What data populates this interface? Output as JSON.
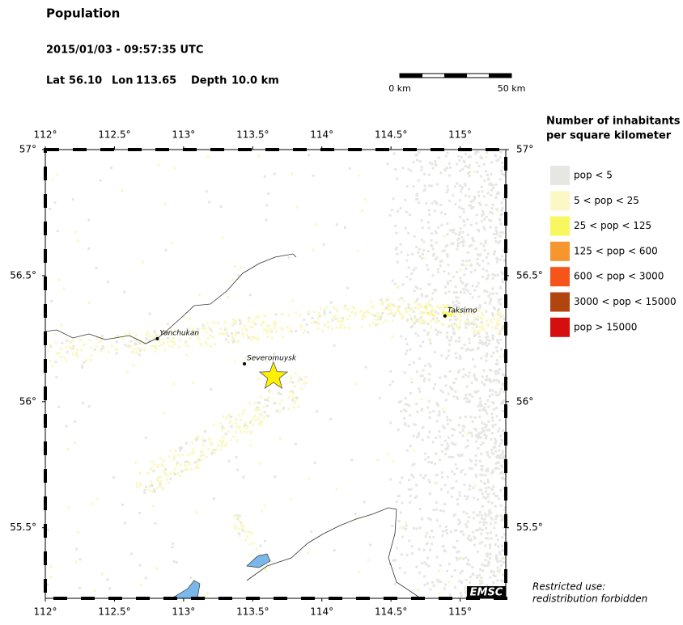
{
  "header": {
    "title": "Population",
    "datetime": "2015/01/03 - 09:57:35 UTC",
    "lat_label": "Lat",
    "lat": {
      "value": 56.1,
      "label": "56.10"
    },
    "lon_label": "Lon",
    "lon": {
      "value": 113.65,
      "label": "113.65"
    },
    "depth_label": "Depth",
    "depth": {
      "value": 10,
      "label": "10.0 km"
    }
  },
  "scale_bar": {
    "labels": [
      "0 km",
      "50 km"
    ]
  },
  "map": {
    "lon_lim": [
      112,
      115.33
    ],
    "lat_lim": [
      55.22,
      57
    ],
    "lon_ticks": [
      {
        "value": 112,
        "label": "112°"
      },
      {
        "value": 112.5,
        "label": "112.5°"
      },
      {
        "value": 113,
        "label": "113°"
      },
      {
        "value": 113.5,
        "label": "113.5°"
      },
      {
        "value": 114,
        "label": "114°"
      },
      {
        "value": 114.5,
        "label": "114.5°"
      },
      {
        "value": 115,
        "label": "115°"
      }
    ],
    "lat_ticks": [
      {
        "value": 57,
        "label": "57°"
      },
      {
        "value": 56.5,
        "label": "56.5°"
      },
      {
        "value": 56,
        "label": "56°"
      },
      {
        "value": 55.5,
        "label": "55.5°"
      }
    ],
    "cities": [
      {
        "name": "Yanchukan",
        "lon": 112.81,
        "lat": 56.25
      },
      {
        "name": "Severomuysk",
        "lon": 113.44,
        "lat": 56.15
      },
      {
        "name": "Taksimo",
        "lon": 114.89,
        "lat": 56.34
      }
    ],
    "epicenter_color": "#ffef00",
    "credit": "EMSC"
  },
  "legend": {
    "title": [
      "Number of inhabitants",
      "per square kilometer"
    ],
    "items": [
      {
        "label": "pop < 5",
        "color": "#e6e6e3"
      },
      {
        "label": "5 < pop < 25",
        "color": "#fbf8c5"
      },
      {
        "label": "25 < pop < 125",
        "color": "#f8f75f"
      },
      {
        "label": "125 < pop < 600",
        "color": "#f6962f"
      },
      {
        "label": "600 < pop < 3000",
        "color": "#f5541a"
      },
      {
        "label": "3000 < pop < 15000",
        "color": "#b2450f"
      },
      {
        "label": "pop > 15000",
        "color": "#d50e0e"
      }
    ]
  },
  "footer": {
    "restricted": [
      "Restricted use:",
      "redistribution forbidden"
    ]
  }
}
